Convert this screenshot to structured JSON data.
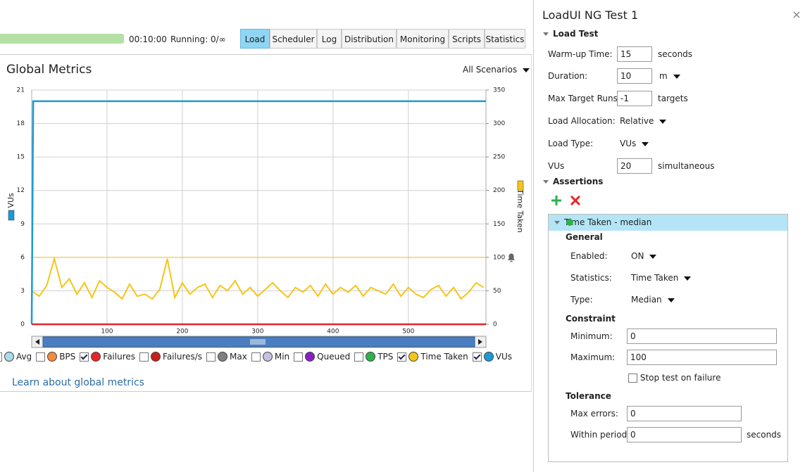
{
  "toolbar": {
    "elapsed": "00:10:00",
    "running": "Running: 0/∞",
    "tabs": [
      "Load",
      "Scheduler",
      "Log",
      "Distribution",
      "Monitoring",
      "Scripts",
      "Statistics"
    ]
  },
  "metrics": {
    "title": "Global Metrics",
    "scenario": "All Scenarios",
    "link": "Learn about global metrics"
  },
  "chart_data": {
    "type": "line",
    "grid": true,
    "xlim": [
      0,
      603
    ],
    "xticks": [
      100,
      200,
      300,
      400,
      500
    ],
    "ylim": [
      0,
      21
    ],
    "yticks": [
      0,
      3,
      6,
      9,
      12,
      15,
      18,
      21
    ],
    "y2lim": [
      0,
      350
    ],
    "y2ticks": [
      0,
      50,
      100,
      150,
      200,
      250,
      300,
      350
    ],
    "y_label": "VUs",
    "y2_label": "Time Taken",
    "series": [
      {
        "name": "Avg",
        "color": "#a9dbe8",
        "checked": false
      },
      {
        "name": "BPS",
        "color": "#f58b3c",
        "checked": false
      },
      {
        "name": "Failures",
        "color": "#e8242a",
        "checked": true,
        "axis": "y2",
        "x": [
          0,
          603
        ],
        "values": [
          0,
          0
        ]
      },
      {
        "name": "Failures/s",
        "color": "#c81e1e",
        "checked": false
      },
      {
        "name": "Max",
        "color": "#808080",
        "checked": false
      },
      {
        "name": "Min",
        "color": "#c8c0e0",
        "checked": false
      },
      {
        "name": "Queued",
        "color": "#8b1ec8",
        "checked": false
      },
      {
        "name": "TPS",
        "color": "#2ab44a",
        "checked": false
      },
      {
        "name": "Time Taken",
        "color": "#f5c518",
        "checked": true,
        "axis": "y2",
        "x": [
          0,
          10,
          20,
          30,
          40,
          50,
          60,
          70,
          80,
          90,
          100,
          110,
          120,
          130,
          140,
          150,
          160,
          170,
          180,
          190,
          200,
          210,
          220,
          230,
          240,
          250,
          260,
          270,
          280,
          290,
          300,
          310,
          320,
          330,
          340,
          350,
          360,
          370,
          380,
          390,
          400,
          410,
          420,
          430,
          440,
          450,
          460,
          470,
          480,
          490,
          500,
          510,
          520,
          530,
          540,
          550,
          560,
          570,
          580,
          590,
          600
        ],
        "values": [
          50,
          42,
          58,
          98,
          55,
          68,
          45,
          62,
          40,
          65,
          55,
          48,
          38,
          60,
          42,
          45,
          38,
          52,
          98,
          40,
          62,
          45,
          55,
          60,
          40,
          58,
          50,
          65,
          45,
          55,
          42,
          52,
          62,
          50,
          40,
          55,
          48,
          58,
          42,
          60,
          45,
          55,
          48,
          58,
          42,
          55,
          50,
          45,
          60,
          42,
          55,
          45,
          40,
          52,
          58,
          42,
          55,
          38,
          48,
          62,
          55
        ]
      },
      {
        "name": "VUs",
        "color": "#1a9ad6",
        "checked": true,
        "axis": "y",
        "x": [
          0,
          2,
          603
        ],
        "values": [
          0,
          20,
          20
        ]
      }
    ]
  },
  "panel": {
    "title": "LoadUI NG Test 1",
    "load_test": {
      "heading": "Load Test",
      "fields": [
        {
          "label": "Warm-up Time:",
          "value": 15,
          "unit": "seconds"
        },
        {
          "label": "Duration:",
          "value": 10,
          "unit": "m"
        },
        {
          "label": "Max Target Runs:",
          "value": -1,
          "unit": "targets"
        },
        {
          "label": "Load Allocation:",
          "choice": "Relative"
        },
        {
          "label": "Load Type:",
          "choice": "VUs"
        },
        {
          "label": "VUs",
          "value": 20,
          "unit": "simultaneous"
        }
      ]
    },
    "assertions": {
      "heading": "Assertions"
    },
    "assertion": {
      "name": "Time Taken - median",
      "general": {
        "heading": "General",
        "fields": [
          {
            "label": "Enabled:",
            "choice": "ON"
          },
          {
            "label": "Statistics:",
            "choice": "Time Taken"
          },
          {
            "label": "Type:",
            "choice": "Median"
          }
        ]
      },
      "constraint": {
        "heading": "Constraint",
        "minimum": {
          "label": "Minimum:",
          "value": 0
        },
        "maximum": {
          "label": "Maximum:",
          "value": 100
        }
      },
      "stop_on_failure": {
        "label": "Stop test on failure",
        "checked": false
      },
      "tolerance": {
        "heading": "Tolerance",
        "fields": [
          {
            "label": "Max errors:",
            "value": 0
          },
          {
            "label": "Within period:",
            "value": 0,
            "unit": "seconds"
          }
        ]
      }
    }
  }
}
